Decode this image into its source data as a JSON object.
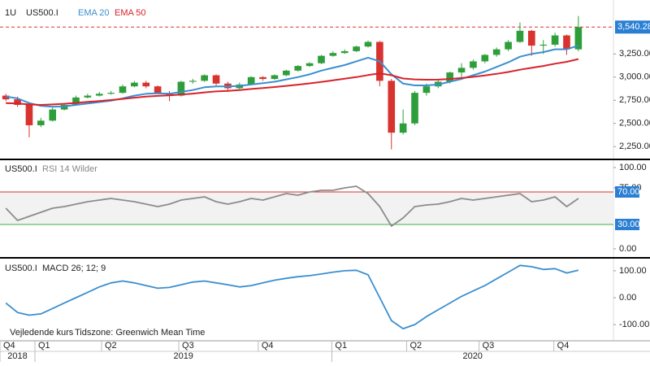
{
  "chart_data": [
    {
      "type": "candlestick",
      "interval": "1U",
      "title": "US500.I",
      "xlim": [
        -0.5,
        52
      ],
      "ylim": [
        2120,
        3815
      ],
      "yticks": [
        {
          "value": 2250,
          "label": "2,250.00"
        },
        {
          "value": 2500,
          "label": "2,500.00"
        },
        {
          "value": 2750,
          "label": "2,750.00"
        },
        {
          "value": 3000,
          "label": "3,000.00"
        },
        {
          "value": 3250,
          "label": "3,250.00"
        }
      ],
      "up_color": "#2e9e3a",
      "down_color": "#d8332e",
      "open": [
        2800,
        2760,
        2700,
        2480,
        2530,
        2650,
        2700,
        2780,
        2800,
        2820,
        2830,
        2900,
        2940,
        2900,
        2830,
        2800,
        2950,
        2960,
        3020,
        2930,
        2880,
        2920,
        3000,
        2980,
        3020,
        3070,
        3120,
        3150,
        3230,
        3260,
        3280,
        3330,
        3380,
        2960,
        2400,
        2500,
        2830,
        2900,
        2950,
        3050,
        3100,
        3170,
        3240,
        3300,
        3380,
        3500,
        3340,
        3350,
        3450,
        3300
      ],
      "high": [
        2820,
        2790,
        2720,
        2560,
        2670,
        2720,
        2800,
        2820,
        2840,
        2850,
        2920,
        2960,
        2960,
        2910,
        2850,
        2960,
        2980,
        3030,
        3030,
        2950,
        2940,
        3010,
        3010,
        3030,
        3080,
        3130,
        3160,
        3240,
        3280,
        3300,
        3340,
        3395,
        3390,
        2980,
        2650,
        2850,
        2930,
        2970,
        3060,
        3150,
        3190,
        3250,
        3320,
        3400,
        3590,
        3510,
        3400,
        3480,
        3460,
        3660
      ],
      "low": [
        2740,
        2680,
        2350,
        2460,
        2520,
        2640,
        2690,
        2770,
        2790,
        2810,
        2820,
        2890,
        2880,
        2820,
        2740,
        2790,
        2930,
        2950,
        2910,
        2840,
        2870,
        2910,
        2960,
        2970,
        3010,
        3060,
        3110,
        3140,
        3220,
        3250,
        3270,
        3320,
        2900,
        2220,
        2380,
        2480,
        2800,
        2880,
        2930,
        3000,
        3080,
        3150,
        3220,
        3280,
        3370,
        3230,
        3250,
        3330,
        3240,
        3280
      ],
      "close": [
        2760,
        2700,
        2480,
        2530,
        2650,
        2700,
        2780,
        2800,
        2820,
        2830,
        2900,
        2940,
        2900,
        2830,
        2800,
        2950,
        2960,
        3020,
        2930,
        2880,
        2920,
        3000,
        2980,
        3020,
        3070,
        3120,
        3150,
        3230,
        3260,
        3280,
        3330,
        3380,
        2960,
        2400,
        2500,
        2830,
        2900,
        2950,
        3050,
        3100,
        3170,
        3240,
        3300,
        3380,
        3500,
        3340,
        3350,
        3450,
        3300,
        3540
      ],
      "series": [
        {
          "name": "EMA 20",
          "color": "#3a8fd0",
          "values": [
            2790,
            2770,
            2720,
            2690,
            2680,
            2685,
            2700,
            2715,
            2730,
            2745,
            2770,
            2800,
            2820,
            2825,
            2820,
            2840,
            2860,
            2890,
            2900,
            2900,
            2905,
            2920,
            2935,
            2950,
            2975,
            3000,
            3030,
            3070,
            3100,
            3130,
            3170,
            3210,
            3170,
            3030,
            2930,
            2910,
            2910,
            2920,
            2950,
            2980,
            3020,
            3060,
            3110,
            3160,
            3220,
            3250,
            3270,
            3300,
            3300,
            3340
          ]
        },
        {
          "name": "EMA 50",
          "color": "#d8232a",
          "values": [
            2720,
            2715,
            2705,
            2700,
            2705,
            2712,
            2722,
            2732,
            2742,
            2752,
            2765,
            2778,
            2790,
            2797,
            2802,
            2812,
            2822,
            2835,
            2845,
            2852,
            2860,
            2872,
            2882,
            2893,
            2905,
            2918,
            2932,
            2948,
            2965,
            2982,
            3000,
            3022,
            3040,
            3020,
            2985,
            2975,
            2972,
            2973,
            2980,
            2990,
            3003,
            3018,
            3035,
            3055,
            3080,
            3100,
            3120,
            3145,
            3165,
            3195
          ]
        }
      ],
      "last_price": {
        "value": 3540.28,
        "label": "3,540.28"
      }
    },
    {
      "type": "line",
      "title": "US500.I",
      "subtitle": "RSI 14 Wilder",
      "xlim": [
        -0.5,
        52
      ],
      "ylim": [
        -9,
        108
      ],
      "yticks": [
        {
          "value": 0,
          "label": "0.00"
        },
        {
          "value": 75,
          "label": "75.00"
        },
        {
          "value": 100,
          "label": "100.00"
        }
      ],
      "levels": [
        {
          "value": 30,
          "label": "30.00",
          "color": "#3cb043"
        },
        {
          "value": 70,
          "label": "70.00",
          "color": "#d8332e"
        }
      ],
      "series": [
        {
          "color": "#8c8c8c",
          "values": [
            50,
            35,
            40,
            45,
            50,
            52,
            55,
            58,
            60,
            62,
            60,
            58,
            55,
            52,
            55,
            60,
            62,
            64,
            58,
            55,
            58,
            62,
            60,
            64,
            68,
            66,
            70,
            72,
            72,
            75,
            77,
            68,
            52,
            28,
            38,
            52,
            54,
            55,
            58,
            62,
            60,
            62,
            64,
            66,
            68,
            58,
            60,
            64,
            52,
            62
          ]
        }
      ]
    },
    {
      "type": "line",
      "title": "US500.I",
      "subtitle": "MACD 26; 12; 9",
      "xlim": [
        -0.5,
        52
      ],
      "ylim": [
        -157,
        139
      ],
      "yticks": [
        {
          "value": -100,
          "label": "-100.00"
        },
        {
          "value": 0,
          "label": "0.00"
        },
        {
          "value": 100,
          "label": "100.00"
        }
      ],
      "series": [
        {
          "color": "#3a8fd0",
          "values": [
            -20,
            -55,
            -65,
            -60,
            -40,
            -20,
            0,
            20,
            40,
            55,
            62,
            55,
            45,
            35,
            38,
            48,
            58,
            62,
            55,
            48,
            40,
            45,
            55,
            65,
            72,
            78,
            82,
            88,
            95,
            100,
            102,
            85,
            0,
            -85,
            -115,
            -100,
            -70,
            -45,
            -20,
            5,
            25,
            45,
            70,
            95,
            120,
            115,
            105,
            108,
            92,
            102
          ]
        }
      ],
      "xticks": [
        {
          "value": -0.5,
          "label": "Q4"
        },
        {
          "value": 2.49,
          "label": "Q1"
        },
        {
          "value": 8.19,
          "label": "Q2"
        },
        {
          "value": 14.8,
          "label": "Q3"
        },
        {
          "value": 21.6,
          "label": "Q4"
        },
        {
          "value": 27.9,
          "label": "Q1"
        },
        {
          "value": 34.3,
          "label": "Q2"
        },
        {
          "value": 40.5,
          "label": "Q3"
        },
        {
          "value": 46.9,
          "label": "Q4"
        }
      ],
      "year_ticks": [
        {
          "value": -0.5,
          "label": "2018"
        },
        {
          "value": 2.49,
          "label": "2019"
        },
        {
          "value": 27.9,
          "label": "2020"
        }
      ]
    }
  ],
  "footer": {
    "price_note": "Vejledende kurs",
    "timezone": "Tidszone: Greenwich Mean Time"
  }
}
